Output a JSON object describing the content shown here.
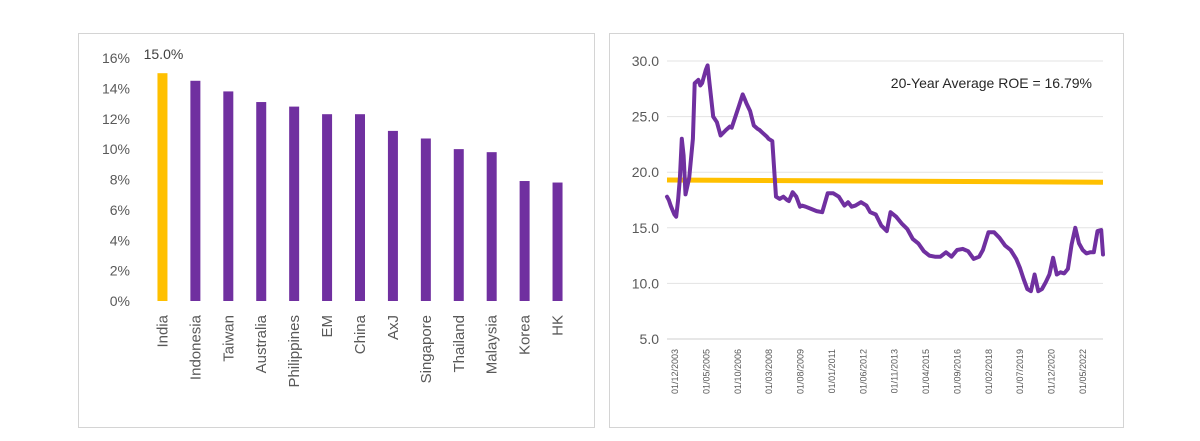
{
  "chart_data": [
    {
      "type": "bar",
      "categories": [
        "India",
        "Indonesia",
        "Taiwan",
        "Australia",
        "Philippines",
        "EM",
        "China",
        "AxJ",
        "Singapore",
        "Thailand",
        "Malaysia",
        "Korea",
        "HK"
      ],
      "values": [
        15.0,
        14.5,
        13.8,
        13.1,
        12.8,
        12.3,
        12.3,
        11.2,
        10.7,
        10.0,
        9.8,
        7.9,
        7.8
      ],
      "colors": [
        "#FFC000",
        "#7030A0",
        "#7030A0",
        "#7030A0",
        "#7030A0",
        "#7030A0",
        "#7030A0",
        "#7030A0",
        "#7030A0",
        "#7030A0",
        "#7030A0",
        "#7030A0",
        "#7030A0"
      ],
      "data_labels": [
        "15.0%"
      ],
      "yticks": [
        "0%",
        "2%",
        "4%",
        "6%",
        "8%",
        "10%",
        "12%",
        "14%",
        "16%"
      ],
      "ylim": [
        0,
        16
      ],
      "title": "",
      "xlabel": "",
      "ylabel": "",
      "grid": false
    },
    {
      "type": "line",
      "x_ticks": [
        "01/12/2003",
        "01/05/2005",
        "01/10/2006",
        "01/03/2008",
        "01/08/2009",
        "01/01/2011",
        "01/06/2012",
        "01/11/2013",
        "01/04/2015",
        "01/09/2016",
        "01/02/2018",
        "01/07/2019",
        "01/12/2020",
        "01/05/2022"
      ],
      "y_ticks": [
        "5.0",
        "10.0",
        "15.0",
        "20.0",
        "25.0",
        "30.0"
      ],
      "ylim": [
        5,
        30
      ],
      "xlim": [
        "2003-12",
        "2023-08"
      ],
      "grid": "horizontal",
      "annotation": "20-Year Average ROE = 16.79%",
      "series": [
        {
          "color": "#7030A0",
          "x": [
            "2003-12",
            "2004-01",
            "2004-02",
            "2004-03",
            "2004-04",
            "2004-05",
            "2004-06",
            "2004-07",
            "2004-08",
            "2004-09",
            "2004-10",
            "2004-12",
            "2005-02",
            "2005-03",
            "2005-05",
            "2005-06",
            "2005-07",
            "2005-08",
            "2005-09",
            "2005-10",
            "2005-11",
            "2006-01",
            "2006-03",
            "2006-05",
            "2006-08",
            "2006-10",
            "2006-11",
            "2007-01",
            "2007-03",
            "2007-05",
            "2007-06",
            "2007-07",
            "2007-09",
            "2007-11",
            "2008-01",
            "2008-02",
            "2008-04",
            "2008-06",
            "2008-07",
            "2008-09",
            "2008-11",
            "2009-01",
            "2009-03",
            "2009-05",
            "2009-06",
            "2009-07",
            "2009-08",
            "2009-10",
            "2009-12",
            "2010-01",
            "2010-03",
            "2010-06",
            "2010-09",
            "2010-12",
            "2011-03",
            "2011-06",
            "2011-09",
            "2011-12",
            "2012-02",
            "2012-04",
            "2012-06",
            "2012-09",
            "2012-12",
            "2013-02",
            "2013-05",
            "2013-08",
            "2013-11",
            "2014-01",
            "2014-04",
            "2014-07",
            "2014-10",
            "2015-01",
            "2015-04",
            "2015-07",
            "2015-10",
            "2016-01",
            "2016-04",
            "2016-07",
            "2016-10",
            "2017-01",
            "2017-04",
            "2017-07",
            "2017-10",
            "2018-01",
            "2018-03",
            "2018-06",
            "2018-09",
            "2018-12",
            "2019-03",
            "2019-06",
            "2019-09",
            "2019-11",
            "2020-01",
            "2020-03",
            "2020-05",
            "2020-07",
            "2020-09",
            "2020-11",
            "2021-01",
            "2021-03",
            "2021-05",
            "2021-07",
            "2021-09",
            "2021-11",
            "2022-01",
            "2022-03",
            "2022-05",
            "2022-07",
            "2022-09",
            "2022-11",
            "2023-01",
            "2023-03",
            "2023-05",
            "2023-07",
            "2023-08"
          ],
          "y": [
            17.8,
            17.5,
            17.0,
            16.6,
            16.2,
            16.0,
            17.5,
            19.5,
            23.0,
            21.5,
            18.0,
            19.5,
            23.0,
            28.0,
            28.3,
            27.8,
            28.0,
            28.6,
            29.2,
            29.6,
            28.0,
            25.0,
            24.5,
            23.3,
            23.8,
            24.1,
            24.0,
            25.0,
            26.0,
            27.0,
            26.6,
            26.2,
            25.5,
            24.2,
            23.9,
            23.8,
            23.5,
            23.2,
            23.0,
            22.8,
            17.8,
            17.6,
            17.8,
            17.5,
            17.4,
            17.8,
            18.2,
            17.8,
            16.9,
            17.0,
            16.9,
            16.7,
            16.5,
            16.4,
            18.1,
            18.1,
            17.8,
            17.0,
            17.3,
            16.9,
            17.0,
            17.3,
            17.0,
            16.4,
            16.2,
            15.2,
            14.7,
            16.4,
            16.0,
            15.4,
            14.9,
            14.0,
            13.6,
            12.9,
            12.5,
            12.4,
            12.4,
            12.8,
            12.4,
            13.0,
            13.1,
            12.9,
            12.2,
            12.4,
            13.0,
            14.6,
            14.6,
            14.1,
            13.4,
            13.0,
            12.2,
            11.4,
            10.4,
            9.5,
            9.3,
            10.8,
            9.3,
            9.5,
            10.1,
            10.8,
            12.3,
            10.8,
            11.0,
            10.9,
            11.3,
            13.5,
            15.0,
            13.6,
            13.0,
            12.7,
            12.8,
            12.8,
            14.7,
            14.8,
            12.6
          ]
        },
        {
          "color": "#FFC000",
          "x": [
            "2003-12",
            "2023-08"
          ],
          "y": [
            19.3,
            19.1
          ]
        }
      ],
      "title": "",
      "xlabel": "",
      "ylabel": ""
    }
  ]
}
